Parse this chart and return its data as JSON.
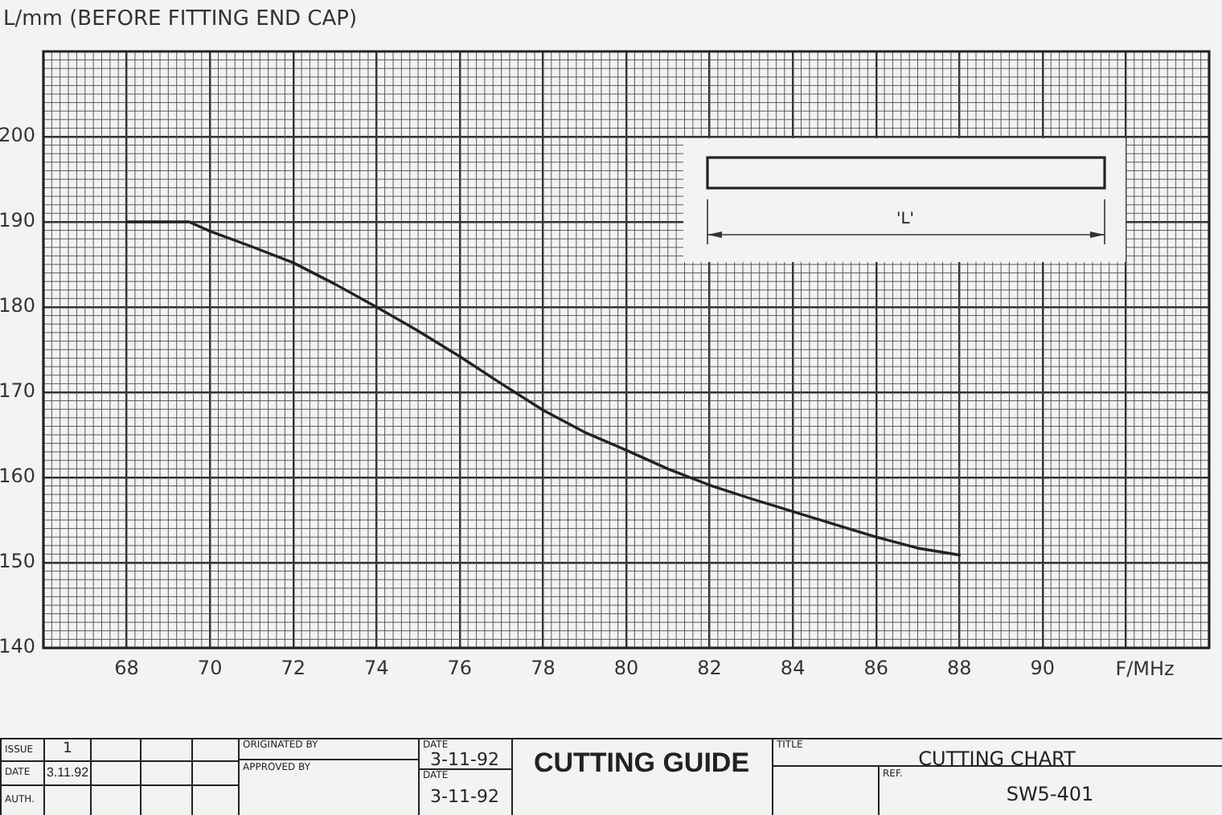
{
  "chart_data": {
    "type": "line",
    "title": "CUTTING CHART",
    "xlabel": "F/MHz",
    "ylabel": "L/mm (BEFORE FITTING END CAP)",
    "x": [
      68,
      69.5,
      70,
      71,
      72,
      73,
      74,
      75,
      76,
      77,
      78,
      79,
      80,
      81,
      82,
      83,
      84,
      85,
      86,
      87,
      88
    ],
    "values": [
      190,
      190,
      188.9,
      187.1,
      185.2,
      182.7,
      180,
      177.2,
      174.2,
      171,
      167.9,
      165.3,
      163.2,
      161,
      159.1,
      157.5,
      156,
      154.5,
      153,
      151.7,
      150.9
    ],
    "color": "#222222",
    "xlim": [
      66,
      94
    ],
    "ylim": [
      140,
      210
    ],
    "xticks": [
      68,
      70,
      72,
      74,
      76,
      78,
      80,
      82,
      84,
      86,
      88,
      90,
      {
        "value": 92,
        "label": null
      }
    ],
    "yticks": [
      140,
      150,
      160,
      170,
      180,
      190,
      200
    ],
    "grid": true,
    "marker": "none",
    "line_style": "solid",
    "annotations": [
      "'L'",
      "ISSUE",
      "1",
      "DATE",
      "3.11.92",
      "AUTH.",
      "ORIGINATED BY",
      "DATE",
      "3-11-92",
      "APPROVED BY",
      "DATE",
      "3-11-92",
      "CUTTING GUIDE",
      "TITLE",
      "REF.",
      "SW5-401"
    ]
  }
}
